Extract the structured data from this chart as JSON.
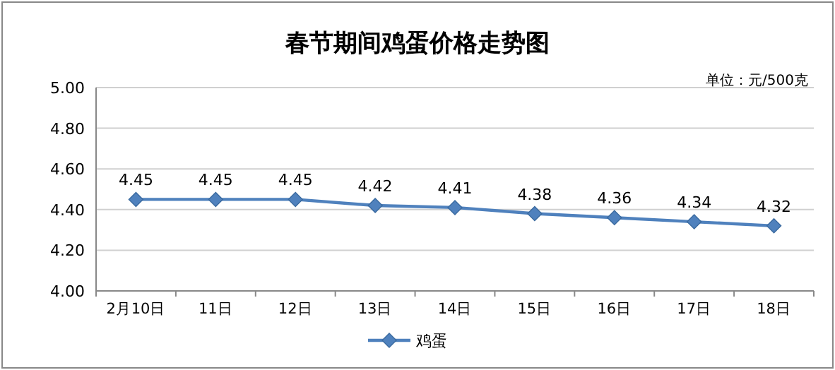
{
  "chart_data": {
    "type": "line",
    "title": "春节期间鸡蛋价格走势图",
    "annotations": [
      "单位：元/500克"
    ],
    "categories": [
      "2月10日",
      "11日",
      "12日",
      "13日",
      "14日",
      "15日",
      "16日",
      "17日",
      "18日"
    ],
    "series": [
      {
        "name": "鸡蛋",
        "color": "#4f81bd",
        "values": [
          4.45,
          4.45,
          4.45,
          4.42,
          4.41,
          4.38,
          4.36,
          4.34,
          4.32
        ]
      }
    ],
    "ylim": [
      4.0,
      5.0
    ],
    "yticks": [
      {
        "value": 4.0,
        "label": "4.00"
      },
      {
        "value": 4.2,
        "label": "4.20"
      },
      {
        "value": 4.4,
        "label": "4.40"
      },
      {
        "value": 4.6,
        "label": "4.60"
      },
      {
        "value": 4.8,
        "label": "4.80"
      },
      {
        "value": 5.0,
        "label": "5.00"
      }
    ],
    "grid": "y",
    "legend": "bottom",
    "marker": "diamond",
    "line_style": "solid",
    "data_labels": true
  }
}
